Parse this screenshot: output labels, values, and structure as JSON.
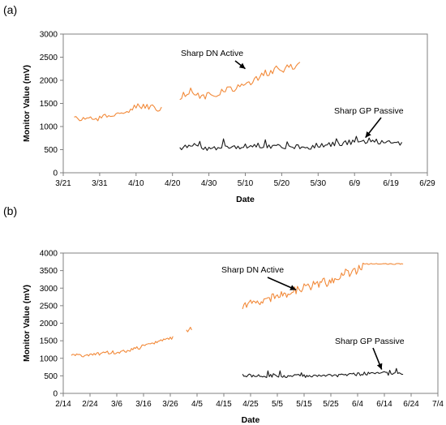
{
  "chart_data": [
    {
      "panel_label": "(a)",
      "type": "line",
      "xlabel": "Date",
      "ylabel": "Monitor Value (mV)",
      "ylim": [
        0,
        3000
      ],
      "yticks": [
        0,
        500,
        1000,
        1500,
        2000,
        2500,
        3000
      ],
      "xlim": [
        "2014-03-21",
        "2014-06-29"
      ],
      "xticks": [
        {
          "date": "2014-03-21",
          "label": "3/21"
        },
        {
          "date": "2014-03-31",
          "label": "3/31"
        },
        {
          "date": "2014-04-10",
          "label": "4/10"
        },
        {
          "date": "2014-04-20",
          "label": "4/20"
        },
        {
          "date": "2014-04-30",
          "label": "4/30"
        },
        {
          "date": "2014-05-10",
          "label": "5/10"
        },
        {
          "date": "2014-05-20",
          "label": "5/20"
        },
        {
          "date": "2014-05-30",
          "label": "5/30"
        },
        {
          "date": "2014-06-09",
          "label": "6/9"
        },
        {
          "date": "2014-06-19",
          "label": "6/19"
        },
        {
          "date": "2014-06-29",
          "label": "6/29"
        }
      ],
      "grid": false,
      "series": [
        {
          "name": "Sharp DN Active",
          "color": "#f28a3a",
          "segments": [
            [
              [
                "2014-03-24",
                1200
              ],
              [
                "2014-03-27",
                1150
              ],
              [
                "2014-03-31",
                1180
              ],
              [
                "2014-04-03",
                1250
              ],
              [
                "2014-04-07",
                1320
              ],
              [
                "2014-04-10",
                1430
              ],
              [
                "2014-04-13",
                1420
              ],
              [
                "2014-04-17",
                1380
              ]
            ],
            [
              [
                "2014-04-22",
                1600
              ],
              [
                "2014-04-25",
                1800
              ],
              [
                "2014-04-28",
                1650
              ],
              [
                "2014-05-01",
                1700
              ],
              [
                "2014-05-05",
                1780
              ],
              [
                "2014-05-09",
                1850
              ],
              [
                "2014-05-13",
                2050
              ],
              [
                "2014-05-17",
                2200
              ],
              [
                "2014-05-21",
                2250
              ],
              [
                "2014-05-25",
                2350
              ]
            ]
          ]
        },
        {
          "name": "Sharp GP Passive",
          "color": "#1a1a1a",
          "segments": [
            [
              [
                "2014-04-22",
                550
              ],
              [
                "2014-04-26",
                560
              ],
              [
                "2014-04-30",
                520
              ],
              [
                "2014-05-04",
                550
              ],
              [
                "2014-05-08",
                570
              ],
              [
                "2014-05-12",
                600
              ],
              [
                "2014-05-16",
                580
              ],
              [
                "2014-05-20",
                560
              ],
              [
                "2014-05-24",
                560
              ],
              [
                "2014-05-28",
                560
              ],
              [
                "2014-06-01",
                600
              ],
              [
                "2014-06-05",
                650
              ],
              [
                "2014-06-09",
                680
              ],
              [
                "2014-06-13",
                700
              ],
              [
                "2014-06-17",
                650
              ],
              [
                "2014-06-22",
                630
              ]
            ]
          ]
        }
      ],
      "annotations": [
        {
          "text": "Sharp DN Active",
          "target": [
            "2014-05-10",
            2250
          ]
        },
        {
          "text": "Sharp GP Passive",
          "target": [
            "2014-06-12",
            760
          ]
        }
      ]
    },
    {
      "panel_label": "(b)",
      "type": "line",
      "xlabel": "Date",
      "ylabel": "Monitor Value (mV)",
      "ylim": [
        0,
        4000
      ],
      "yticks": [
        0,
        500,
        1000,
        1500,
        2000,
        2500,
        3000,
        3500,
        4000
      ],
      "xlim": [
        "2014-02-14",
        "2014-07-04"
      ],
      "xticks": [
        {
          "date": "2014-02-14",
          "label": "2/14"
        },
        {
          "date": "2014-02-24",
          "label": "2/24"
        },
        {
          "date": "2014-03-06",
          "label": "3/6"
        },
        {
          "date": "2014-03-16",
          "label": "3/16"
        },
        {
          "date": "2014-03-26",
          "label": "3/26"
        },
        {
          "date": "2014-04-05",
          "label": "4/5"
        },
        {
          "date": "2014-04-15",
          "label": "4/15"
        },
        {
          "date": "2014-04-25",
          "label": "4/25"
        },
        {
          "date": "2014-05-05",
          "label": "5/5"
        },
        {
          "date": "2014-05-15",
          "label": "5/15"
        },
        {
          "date": "2014-05-25",
          "label": "5/25"
        },
        {
          "date": "2014-06-04",
          "label": "6/4"
        },
        {
          "date": "2014-06-14",
          "label": "6/14"
        },
        {
          "date": "2014-06-24",
          "label": "6/24"
        },
        {
          "date": "2014-07-04",
          "label": "7/4"
        }
      ],
      "grid": false,
      "series": [
        {
          "name": "Sharp DN Active",
          "color": "#f28a3a",
          "segments": [
            [
              [
                "2014-02-17",
                1120
              ],
              [
                "2014-02-21",
                1080
              ],
              [
                "2014-02-25",
                1100
              ],
              [
                "2014-03-01",
                1150
              ],
              [
                "2014-03-05",
                1170
              ],
              [
                "2014-03-09",
                1200
              ],
              [
                "2014-03-13",
                1280
              ],
              [
                "2014-03-17",
                1350
              ],
              [
                "2014-03-21",
                1450
              ],
              [
                "2014-03-24",
                1550
              ],
              [
                "2014-03-27",
                1600
              ]
            ],
            [
              [
                "2014-04-01",
                1850
              ],
              [
                "2014-04-03",
                1800
              ]
            ],
            [
              [
                "2014-04-22",
                2500
              ],
              [
                "2014-04-26",
                2650
              ],
              [
                "2014-04-30",
                2600
              ],
              [
                "2014-05-04",
                2750
              ],
              [
                "2014-05-08",
                2850
              ],
              [
                "2014-05-12",
                2950
              ],
              [
                "2014-05-16",
                3050
              ],
              [
                "2014-05-20",
                3100
              ],
              [
                "2014-05-24",
                3200
              ],
              [
                "2014-05-28",
                3300
              ],
              [
                "2014-06-01",
                3450
              ],
              [
                "2014-06-05",
                3600
              ],
              [
                "2014-06-09",
                3680
              ],
              [
                "2014-06-13",
                3700
              ],
              [
                "2014-06-17",
                3700
              ],
              [
                "2014-06-21",
                3690
              ]
            ]
          ]
        },
        {
          "name": "Sharp GP Passive",
          "color": "#1a1a1a",
          "segments": [
            [
              [
                "2014-04-22",
                500
              ],
              [
                "2014-04-26",
                520
              ],
              [
                "2014-04-30",
                490
              ],
              [
                "2014-05-04",
                510
              ],
              [
                "2014-05-08",
                500
              ],
              [
                "2014-05-12",
                510
              ],
              [
                "2014-05-16",
                490
              ],
              [
                "2014-05-20",
                500
              ],
              [
                "2014-05-24",
                510
              ],
              [
                "2014-05-28",
                520
              ],
              [
                "2014-06-01",
                540
              ],
              [
                "2014-06-05",
                560
              ],
              [
                "2014-06-09",
                570
              ],
              [
                "2014-06-13",
                580
              ],
              [
                "2014-06-17",
                560
              ],
              [
                "2014-06-21",
                560
              ]
            ]
          ]
        }
      ],
      "annotations": [
        {
          "text": "Sharp DN Active",
          "target": [
            "2014-05-12",
            2950
          ]
        },
        {
          "text": "Sharp GP Passive",
          "target": [
            "2014-06-13",
            680
          ]
        }
      ]
    }
  ]
}
